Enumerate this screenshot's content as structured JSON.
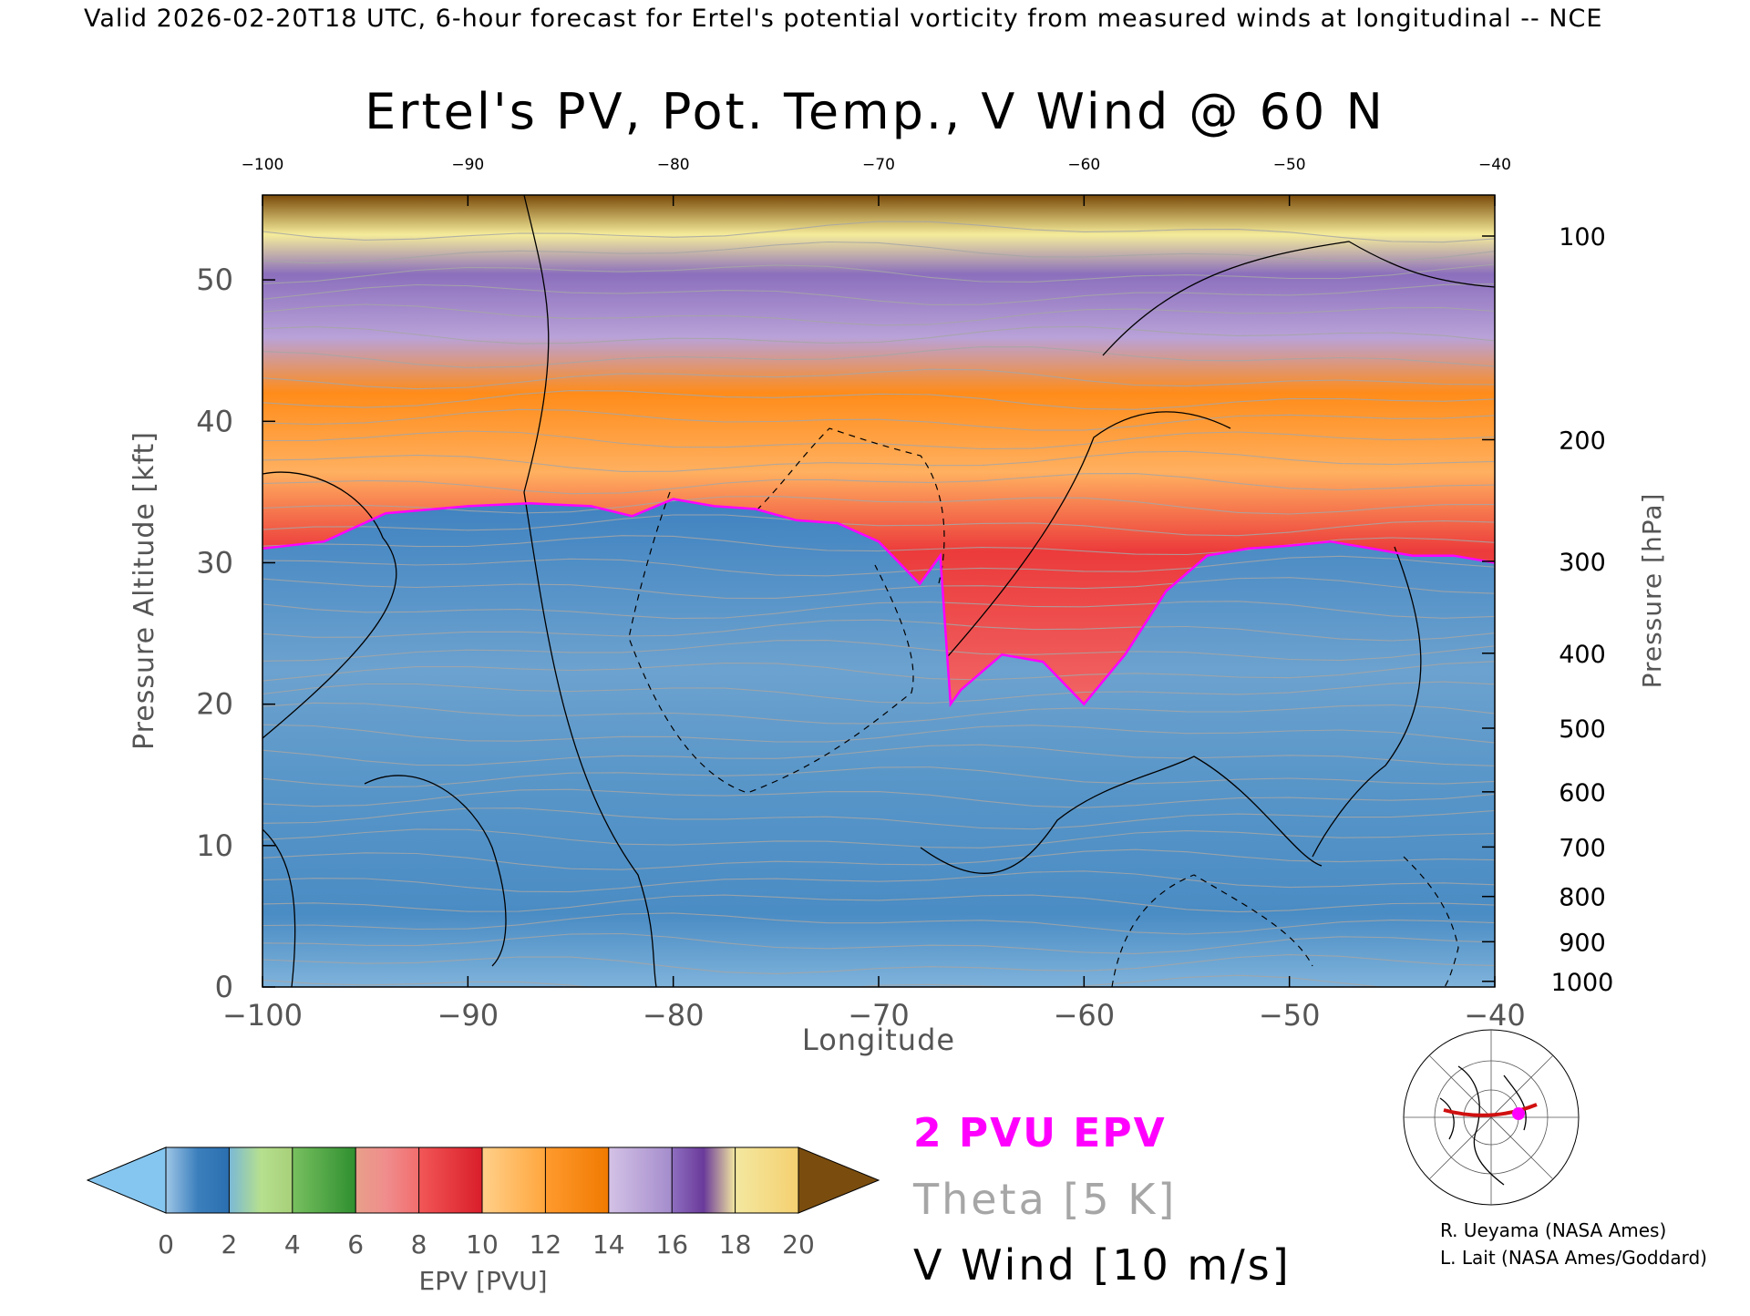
{
  "header_text": "Valid 2026-02-20T18 UTC, 6-hour forecast for Ertel's potential vorticity from measured winds at longitudinal -- NCE",
  "chart_data": {
    "type": "heatmap",
    "title": "Ertel's PV, Pot. Temp., V Wind @ 60 N",
    "xlabel": "Longitude",
    "ylabel": "Pressure Altitude [kft]",
    "y2label": "Pressure [hPa]",
    "xlim": [
      -100,
      -40
    ],
    "ylim": [
      0,
      56
    ],
    "x_ticks": [
      -100,
      -90,
      -80,
      -70,
      -60,
      -50,
      -40
    ],
    "x_tick_labels": [
      "−100",
      "−90",
      "−80",
      "−70",
      "−60",
      "−50",
      "−40"
    ],
    "x_top_tick_labels": [
      "−100",
      "−90",
      "−80",
      "−70",
      "−60",
      "−50",
      "−40"
    ],
    "y_ticks": [
      0,
      10,
      20,
      30,
      40,
      50
    ],
    "y_tick_labels": [
      "0",
      "10",
      "20",
      "30",
      "40",
      "50"
    ],
    "pressure_ticks": [
      {
        "label": "100",
        "kft": 53.1
      },
      {
        "label": "200",
        "kft": 38.7
      },
      {
        "label": "300",
        "kft": 30.1
      },
      {
        "label": "400",
        "kft": 23.6
      },
      {
        "label": "500",
        "kft": 18.3
      },
      {
        "label": "600",
        "kft": 13.8
      },
      {
        "label": "700",
        "kft": 9.9
      },
      {
        "label": "800",
        "kft": 6.4
      },
      {
        "label": "900",
        "kft": 3.2
      },
      {
        "label": "1000",
        "kft": 0.4
      }
    ],
    "tropopause_2pvu_kft": {
      "x": [
        -100,
        -97,
        -94,
        -90,
        -87,
        -84,
        -82,
        -80,
        -78,
        -76,
        -74,
        -72,
        -70,
        -68,
        -67,
        -66.5,
        -66,
        -64,
        -62,
        -60,
        -58,
        -56,
        -54,
        -52,
        -50,
        -48,
        -46,
        -44,
        -42,
        -40
      ],
      "y": [
        31,
        31.5,
        33.5,
        34,
        34.2,
        34,
        33.3,
        34.5,
        34,
        33.8,
        33,
        32.8,
        31.5,
        28.5,
        30.5,
        20,
        21,
        23.5,
        23,
        20,
        23.5,
        28,
        30.5,
        31,
        31.2,
        31.5,
        31,
        30.5,
        30.5,
        30
      ]
    },
    "epv_colorbar": {
      "label": "EPV [PVU]",
      "ticks": [
        "0",
        "2",
        "4",
        "6",
        "8",
        "10",
        "12",
        "14",
        "16",
        "18",
        "20"
      ],
      "min": 0,
      "max": 20,
      "extend": "both"
    },
    "legend": [
      {
        "label": "2 PVU EPV",
        "color": "#ff00ff"
      },
      {
        "label": "Theta [5 K]",
        "color": "#a6a6a6"
      },
      {
        "label": "V Wind [10 m/s]",
        "color": "#000000"
      }
    ]
  },
  "credits": [
    "R. Ueyama (NASA Ames)",
    "L. Lait (NASA Ames/Goddard)"
  ],
  "colors": {
    "tropopause": "#ff00ff",
    "theta": "#a6a6a6",
    "v_wind": "#000000",
    "troposphere": "#4f8fc4",
    "stratosphere_green": "#44a43c",
    "stratosphere_red": "#ea3a3a",
    "stratosphere_orange": "#ff8c1a",
    "stratosphere_purple": "#8f6fb8"
  },
  "icons": {
    "inset_map": "globe-map-icon"
  }
}
